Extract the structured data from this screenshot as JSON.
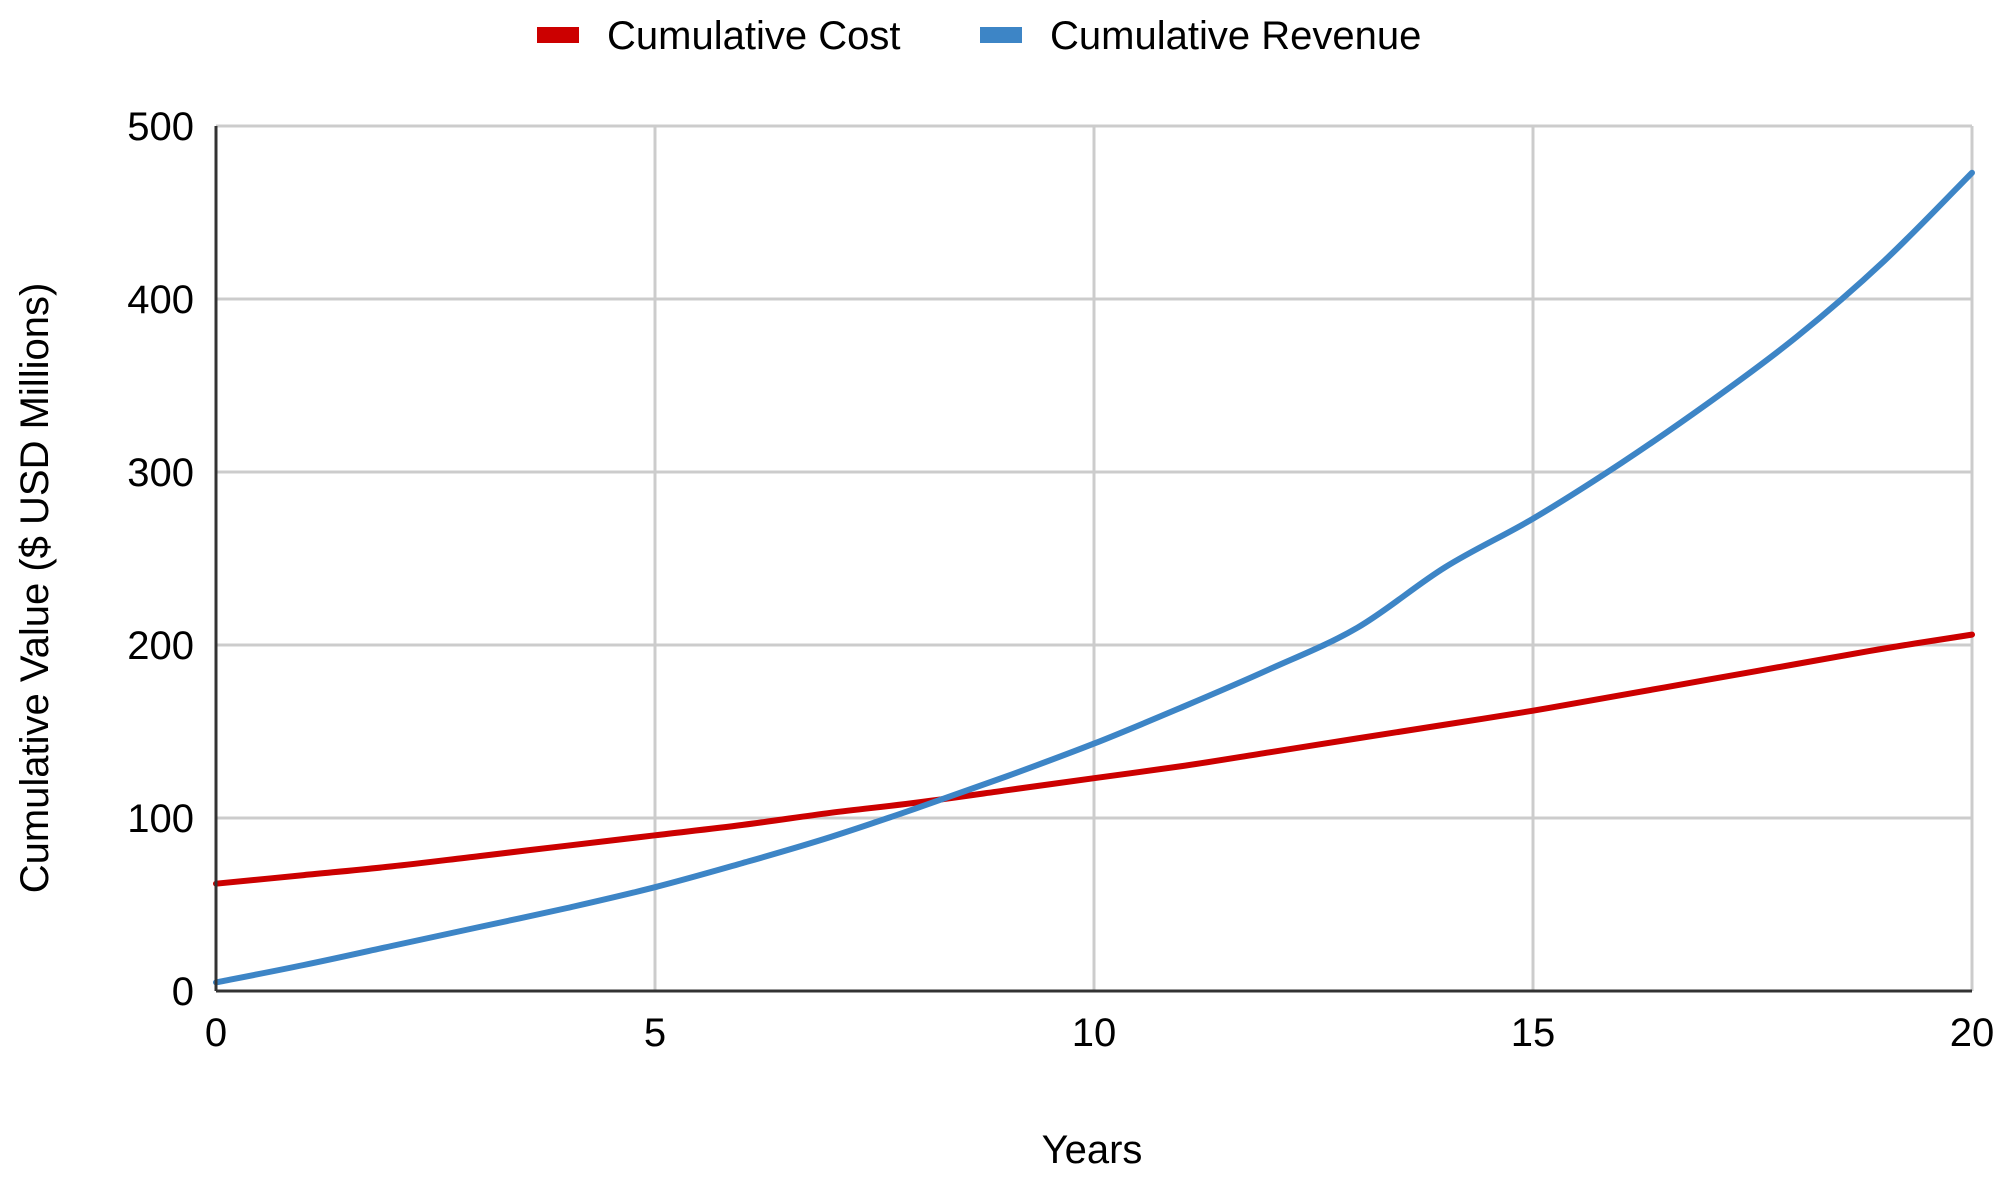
{
  "chart_data": {
    "type": "line",
    "xlabel": "Years",
    "ylabel": "Cumulative Value ($ USD Millions)",
    "xlim": [
      0,
      20
    ],
    "ylim": [
      0,
      500
    ],
    "x_ticks": [
      0,
      5,
      10,
      15,
      20
    ],
    "y_ticks": [
      0,
      100,
      200,
      300,
      400,
      500
    ],
    "grid": true,
    "legend": "top-center",
    "series": [
      {
        "name": "Cumulative Cost",
        "color": "#cc0000",
        "x": [
          0,
          1,
          2,
          3,
          4,
          5,
          6,
          7,
          8,
          9,
          10,
          11,
          12,
          13,
          14,
          15,
          16,
          17,
          18,
          19,
          20
        ],
        "y": [
          62,
          67,
          72,
          78,
          84,
          90,
          96,
          103,
          109,
          116,
          123,
          130,
          138,
          146,
          154,
          162,
          171,
          180,
          189,
          198,
          206
        ]
      },
      {
        "name": "Cumulative Revenue",
        "color": "#3d85c6",
        "x": [
          0,
          1,
          2,
          3,
          4,
          5,
          6,
          7,
          8,
          9,
          10,
          11,
          12,
          13,
          14,
          15,
          16,
          17,
          18,
          19,
          20
        ],
        "y": [
          5,
          15,
          26,
          37,
          48,
          60,
          74,
          89,
          106,
          124,
          143,
          164,
          186,
          210,
          245,
          273,
          305,
          340,
          378,
          422,
          473
        ]
      }
    ]
  }
}
